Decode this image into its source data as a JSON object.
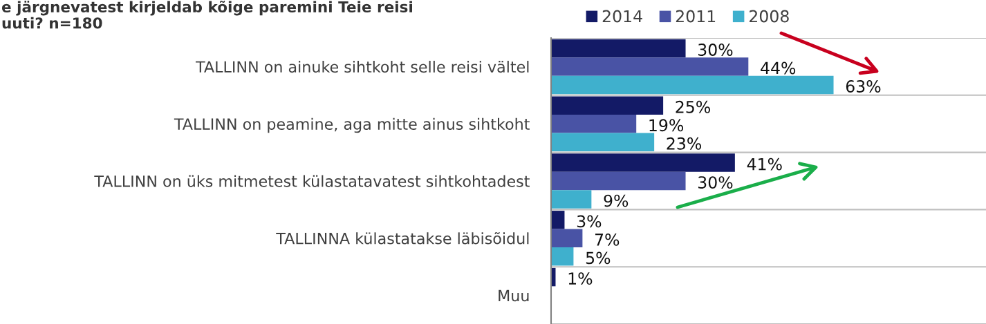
{
  "chart_data": {
    "type": "bar",
    "orientation": "horizontal",
    "title": "e järgnevatest kirjeldab kõige paremini Teie reisi\nuuti? n=180",
    "categories": [
      "TALLINN on ainuke sihtkoht selle reisi vältel",
      "TALLINN on peamine, aga mitte ainus sihtkoht",
      "TALLINN on üks mitmetest külastatavatest sihtkohtadest",
      "TALLINNA külastatakse läbisõidul",
      "Muu"
    ],
    "series": [
      {
        "name": "2014",
        "color": "#131a66",
        "values": [
          30,
          25,
          41,
          3,
          1
        ],
        "value_labels": [
          "30%",
          "25%",
          "41%",
          "3%",
          "1%"
        ]
      },
      {
        "name": "2011",
        "color": "#4953a5",
        "values": [
          44,
          19,
          30,
          7,
          null
        ],
        "value_labels": [
          "44%",
          "19%",
          "30%",
          "7%",
          null
        ]
      },
      {
        "name": "2008",
        "color": "#3fb0cd",
        "values": [
          63,
          23,
          9,
          5,
          null
        ],
        "value_labels": [
          "63%",
          "23%",
          "9%",
          "5%",
          null
        ]
      }
    ],
    "xlim": [
      0,
      97
    ],
    "grid": "y",
    "legend": "top",
    "tick_labels": "y"
  }
}
